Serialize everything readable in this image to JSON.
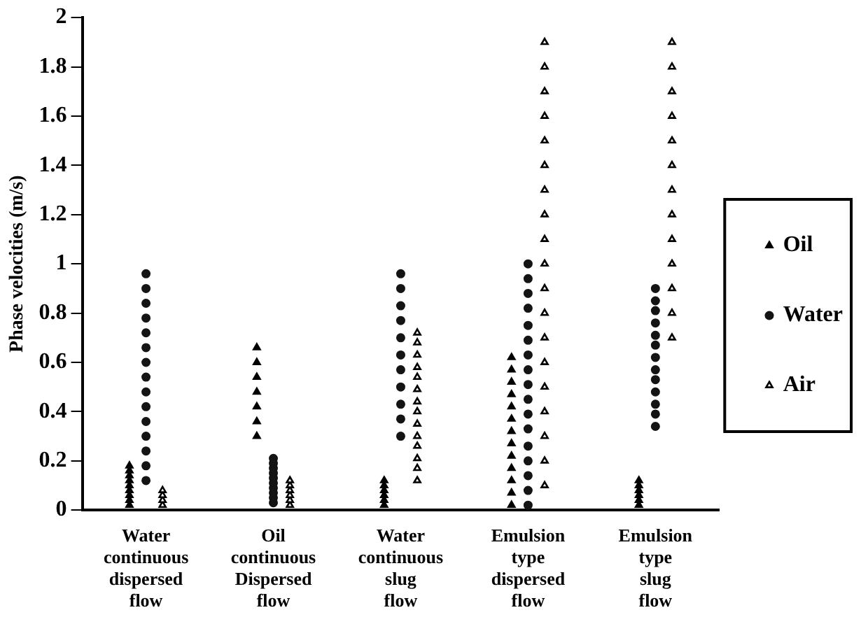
{
  "chart_data": {
    "type": "scatter",
    "ylabel": "Phase velocities (m/s)",
    "categories": [
      "Water continuous dispersed flow",
      "Oil continuous Dispersed flow",
      "Water continuous slug flow",
      "Emulsion type dispersed flow",
      "Emulsion type slug flow"
    ],
    "ylim": [
      0,
      2
    ],
    "yticks": [
      0,
      0.2,
      0.4,
      0.6,
      0.8,
      1,
      1.2,
      1.4,
      1.6,
      1.8,
      2
    ],
    "grid": false,
    "legend": "right",
    "series": [
      {
        "name": "Oil",
        "color": "#000000",
        "marker": "triangle",
        "x": [
          "Water continuous dispersed flow",
          "Water continuous dispersed flow",
          "Water continuous dispersed flow",
          "Water continuous dispersed flow",
          "Water continuous dispersed flow",
          "Water continuous dispersed flow",
          "Water continuous dispersed flow",
          "Water continuous dispersed flow",
          "Water continuous dispersed flow",
          "Oil continuous Dispersed flow",
          "Oil continuous Dispersed flow",
          "Oil continuous Dispersed flow",
          "Oil continuous Dispersed flow",
          "Oil continuous Dispersed flow",
          "Oil continuous Dispersed flow",
          "Oil continuous Dispersed flow",
          "Water continuous slug flow",
          "Water continuous slug flow",
          "Water continuous slug flow",
          "Water continuous slug flow",
          "Water continuous slug flow",
          "Water continuous slug flow",
          "Emulsion type dispersed flow",
          "Emulsion type dispersed flow",
          "Emulsion type dispersed flow",
          "Emulsion type dispersed flow",
          "Emulsion type dispersed flow",
          "Emulsion type dispersed flow",
          "Emulsion type dispersed flow",
          "Emulsion type dispersed flow",
          "Emulsion type dispersed flow",
          "Emulsion type dispersed flow",
          "Emulsion type dispersed flow",
          "Emulsion type dispersed flow",
          "Emulsion type dispersed flow",
          "Emulsion type slug flow",
          "Emulsion type slug flow",
          "Emulsion type slug flow",
          "Emulsion type slug flow",
          "Emulsion type slug flow",
          "Emulsion type slug flow"
        ],
        "values": [
          0.02,
          0.04,
          0.06,
          0.08,
          0.1,
          0.12,
          0.14,
          0.16,
          0.18,
          0.3,
          0.36,
          0.42,
          0.48,
          0.54,
          0.6,
          0.66,
          0.02,
          0.04,
          0.06,
          0.08,
          0.1,
          0.12,
          0.02,
          0.07,
          0.12,
          0.17,
          0.22,
          0.27,
          0.32,
          0.37,
          0.42,
          0.47,
          0.52,
          0.57,
          0.62,
          0.02,
          0.04,
          0.06,
          0.08,
          0.1,
          0.12
        ]
      },
      {
        "name": "Water",
        "color": "#141414",
        "marker": "circle",
        "x": [
          "Water continuous dispersed flow",
          "Water continuous dispersed flow",
          "Water continuous dispersed flow",
          "Water continuous dispersed flow",
          "Water continuous dispersed flow",
          "Water continuous dispersed flow",
          "Water continuous dispersed flow",
          "Water continuous dispersed flow",
          "Water continuous dispersed flow",
          "Water continuous dispersed flow",
          "Water continuous dispersed flow",
          "Water continuous dispersed flow",
          "Water continuous dispersed flow",
          "Water continuous dispersed flow",
          "Water continuous dispersed flow",
          "Oil continuous Dispersed flow",
          "Oil continuous Dispersed flow",
          "Oil continuous Dispersed flow",
          "Oil continuous Dispersed flow",
          "Oil continuous Dispersed flow",
          "Oil continuous Dispersed flow",
          "Oil continuous Dispersed flow",
          "Oil continuous Dispersed flow",
          "Oil continuous Dispersed flow",
          "Oil continuous Dispersed flow",
          "Water continuous slug flow",
          "Water continuous slug flow",
          "Water continuous slug flow",
          "Water continuous slug flow",
          "Water continuous slug flow",
          "Water continuous slug flow",
          "Water continuous slug flow",
          "Water continuous slug flow",
          "Water continuous slug flow",
          "Water continuous slug flow",
          "Water continuous slug flow",
          "Emulsion type dispersed flow",
          "Emulsion type dispersed flow",
          "Emulsion type dispersed flow",
          "Emulsion type dispersed flow",
          "Emulsion type dispersed flow",
          "Emulsion type dispersed flow",
          "Emulsion type dispersed flow",
          "Emulsion type dispersed flow",
          "Emulsion type dispersed flow",
          "Emulsion type dispersed flow",
          "Emulsion type dispersed flow",
          "Emulsion type dispersed flow",
          "Emulsion type dispersed flow",
          "Emulsion type dispersed flow",
          "Emulsion type dispersed flow",
          "Emulsion type dispersed flow",
          "Emulsion type dispersed flow",
          "Emulsion type slug flow",
          "Emulsion type slug flow",
          "Emulsion type slug flow",
          "Emulsion type slug flow",
          "Emulsion type slug flow",
          "Emulsion type slug flow",
          "Emulsion type slug flow",
          "Emulsion type slug flow",
          "Emulsion type slug flow",
          "Emulsion type slug flow",
          "Emulsion type slug flow",
          "Emulsion type slug flow",
          "Emulsion type slug flow"
        ],
        "values": [
          0.12,
          0.18,
          0.24,
          0.3,
          0.36,
          0.42,
          0.48,
          0.54,
          0.6,
          0.66,
          0.72,
          0.78,
          0.84,
          0.9,
          0.96,
          0.03,
          0.05,
          0.07,
          0.09,
          0.11,
          0.13,
          0.15,
          0.17,
          0.19,
          0.21,
          0.3,
          0.37,
          0.43,
          0.5,
          0.57,
          0.63,
          0.7,
          0.77,
          0.83,
          0.9,
          0.96,
          0.02,
          0.08,
          0.14,
          0.2,
          0.26,
          0.33,
          0.39,
          0.45,
          0.51,
          0.57,
          0.63,
          0.69,
          0.75,
          0.82,
          0.88,
          0.94,
          1,
          0.34,
          0.39,
          0.43,
          0.48,
          0.53,
          0.57,
          0.62,
          0.67,
          0.71,
          0.76,
          0.81,
          0.85,
          0.9
        ]
      },
      {
        "name": "Air",
        "color": "#000000",
        "marker": "triangle",
        "x": [
          "Water continuous dispersed flow",
          "Water continuous dispersed flow",
          "Water continuous dispersed flow",
          "Water continuous dispersed flow",
          "Oil continuous Dispersed flow",
          "Oil continuous Dispersed flow",
          "Oil continuous Dispersed flow",
          "Oil continuous Dispersed flow",
          "Oil continuous Dispersed flow",
          "Oil continuous Dispersed flow",
          "Water continuous slug flow",
          "Water continuous slug flow",
          "Water continuous slug flow",
          "Water continuous slug flow",
          "Water continuous slug flow",
          "Water continuous slug flow",
          "Water continuous slug flow",
          "Water continuous slug flow",
          "Water continuous slug flow",
          "Water continuous slug flow",
          "Water continuous slug flow",
          "Water continuous slug flow",
          "Water continuous slug flow",
          "Water continuous slug flow",
          "Emulsion type dispersed flow",
          "Emulsion type dispersed flow",
          "Emulsion type dispersed flow",
          "Emulsion type dispersed flow",
          "Emulsion type dispersed flow",
          "Emulsion type dispersed flow",
          "Emulsion type dispersed flow",
          "Emulsion type dispersed flow",
          "Emulsion type dispersed flow",
          "Emulsion type dispersed flow",
          "Emulsion type dispersed flow",
          "Emulsion type dispersed flow",
          "Emulsion type dispersed flow",
          "Emulsion type dispersed flow",
          "Emulsion type dispersed flow",
          "Emulsion type dispersed flow",
          "Emulsion type dispersed flow",
          "Emulsion type dispersed flow",
          "Emulsion type dispersed flow",
          "Emulsion type slug flow",
          "Emulsion type slug flow",
          "Emulsion type slug flow",
          "Emulsion type slug flow",
          "Emulsion type slug flow",
          "Emulsion type slug flow",
          "Emulsion type slug flow",
          "Emulsion type slug flow",
          "Emulsion type slug flow",
          "Emulsion type slug flow",
          "Emulsion type slug flow",
          "Emulsion type slug flow",
          "Emulsion type slug flow"
        ],
        "values": [
          0.02,
          0.04,
          0.06,
          0.08,
          0.02,
          0.04,
          0.06,
          0.08,
          0.1,
          0.12,
          0.12,
          0.17,
          0.21,
          0.26,
          0.3,
          0.35,
          0.4,
          0.44,
          0.49,
          0.54,
          0.58,
          0.63,
          0.68,
          0.72,
          0.1,
          0.2,
          0.3,
          0.4,
          0.5,
          0.6,
          0.7,
          0.8,
          0.9,
          1,
          1.1,
          1.2,
          1.3,
          1.4,
          1.5,
          1.6,
          1.7,
          1.8,
          1.9,
          0.7,
          0.8,
          0.9,
          1,
          1.1,
          1.2,
          1.3,
          1.4,
          1.5,
          1.6,
          1.7,
          1.8,
          1.9
        ]
      }
    ]
  }
}
